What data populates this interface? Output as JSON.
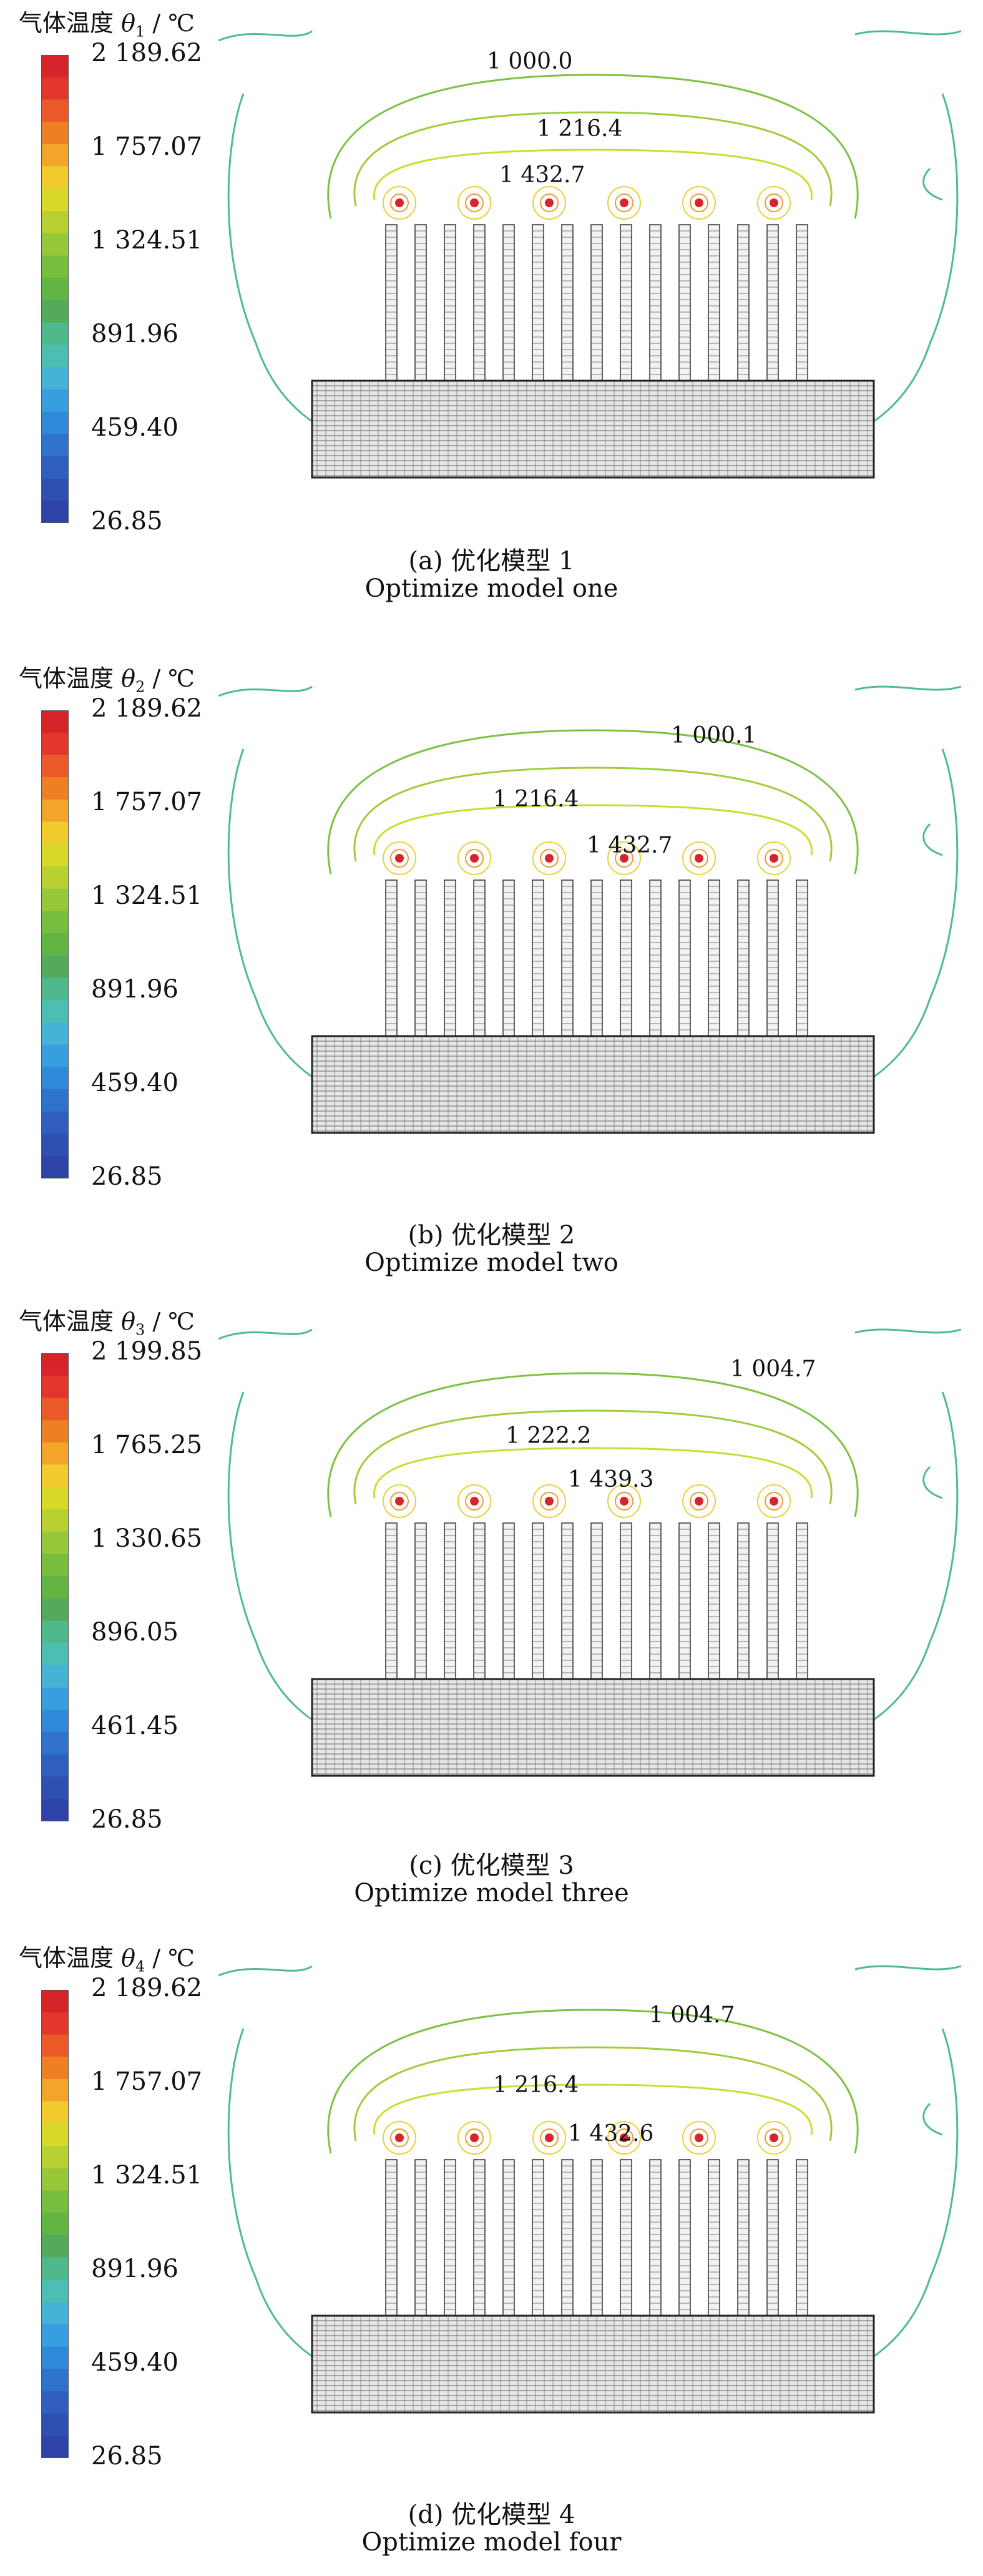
{
  "legend_colors": [
    "#d7242a",
    "#e2352b",
    "#ea5a28",
    "#ef7f23",
    "#f3a52a",
    "#f0cc2f",
    "#d9d92a",
    "#b8d131",
    "#96c83a",
    "#79bd3e",
    "#62b443",
    "#52aa5a",
    "#4fb98b",
    "#4cbfb2",
    "#45b2d8",
    "#389fdf",
    "#2f88d8",
    "#2f72cb",
    "#2f5fbe",
    "#2f4fb1",
    "#2d44a6"
  ],
  "panels": [
    {
      "legend_title_prefix": "气体温度 ",
      "theta": "θ",
      "subscript": "1",
      "unit": " / ℃",
      "ticks": [
        "2 189.62",
        "1 757.07",
        "1 324.51",
        "891.96",
        "459.40",
        "26.85"
      ],
      "contours": [
        "1 000.0",
        "1 216.4",
        "1 432.7"
      ],
      "caption_cn": "(a) 优化模型 1",
      "caption_en": "Optimize model one"
    },
    {
      "legend_title_prefix": "气体温度 ",
      "theta": "θ",
      "subscript": "2",
      "unit": " / ℃",
      "ticks": [
        "2 189.62",
        "1 757.07",
        "1 324.51",
        "891.96",
        "459.40",
        "26.85"
      ],
      "contours": [
        "1 000.1",
        "1 216.4",
        "1 432.7"
      ],
      "caption_cn": "(b) 优化模型 2",
      "caption_en": "Optimize model two"
    },
    {
      "legend_title_prefix": "气体温度 ",
      "theta": "θ",
      "subscript": "3",
      "unit": " / ℃",
      "ticks": [
        "2 199.85",
        "1 765.25",
        "1 330.65",
        "896.05",
        "461.45",
        "26.85"
      ],
      "contours": [
        "1 004.7",
        "1 222.2",
        "1 439.3"
      ],
      "caption_cn": "(c) 优化模型 3",
      "caption_en": "Optimize model three"
    },
    {
      "legend_title_prefix": "气体温度 ",
      "theta": "θ",
      "subscript": "4",
      "unit": " / ℃",
      "ticks": [
        "2 189.62",
        "1 757.07",
        "1 324.51",
        "891.96",
        "459.40",
        "26.85"
      ],
      "contours": [
        "1 004.7",
        "1 216.4",
        "1 432.6"
      ],
      "caption_cn": "(d) 优化模型 4",
      "caption_en": "Optimize model four"
    }
  ]
}
